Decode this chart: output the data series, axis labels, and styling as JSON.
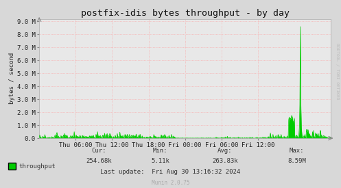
{
  "title": "postfix-idis bytes throughput - by day",
  "ylabel": "bytes / second",
  "bg_color": "#d8d8d8",
  "plot_bg_color": "#e8e8e8",
  "grid_color": "#ff9999",
  "line_color": "#00cc00",
  "fill_color": "#00cc00",
  "ytick_labels": [
    "0.0",
    "1.0 M",
    "2.0 M",
    "3.0 M",
    "4.0 M",
    "5.0 M",
    "6.0 M",
    "7.0 M",
    "8.0 M",
    "9.0 M"
  ],
  "ytick_values": [
    0,
    1000000,
    2000000,
    3000000,
    4000000,
    5000000,
    6000000,
    7000000,
    8000000,
    9000000
  ],
  "xtick_labels": [
    "Thu 06:00",
    "Thu 12:00",
    "Thu 18:00",
    "Fri 00:00",
    "Fri 06:00",
    "Fri 12:00"
  ],
  "xtick_positions": [
    0.125,
    0.25,
    0.375,
    0.5,
    0.625,
    0.75
  ],
  "ymax": 9200000,
  "legend_label": "throughput",
  "legend_color": "#00cc00",
  "cur": "254.68k",
  "min": "5.11k",
  "avg": "263.83k",
  "max": "8.59M",
  "last_update": "Fri Aug 30 13:16:32 2024",
  "munin_version": "Munin 2.0.75",
  "rrdtool_label": "RRDTOOL / TOBI OETIKER",
  "title_fontsize": 9.5,
  "axis_fontsize": 6.5,
  "label_fontsize": 6.5,
  "stats_fontsize": 6.5
}
